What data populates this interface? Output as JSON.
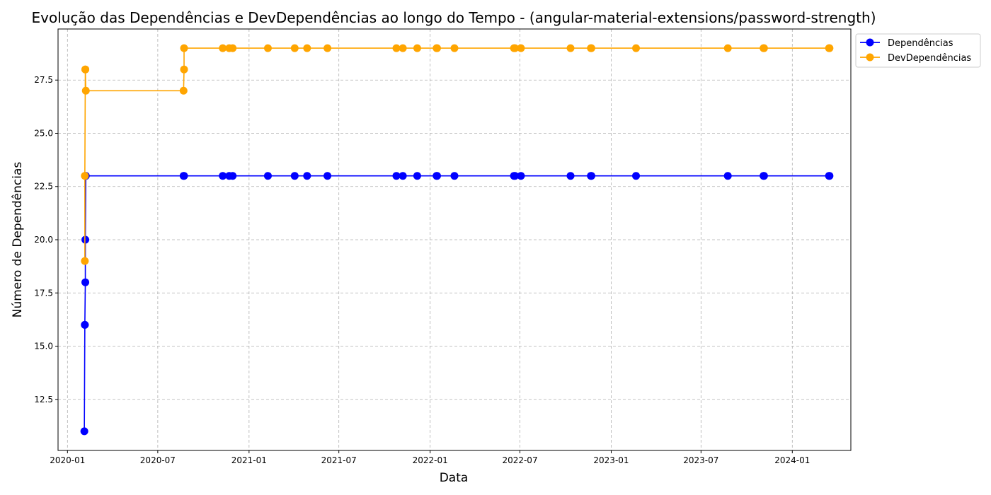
{
  "chart_data": {
    "type": "line",
    "title": "Evolução das Dependências e DevDependências ao longo do Tempo - (angular-material-extensions/password-strength)",
    "xlabel": "Data",
    "ylabel": "Número de Dependências",
    "x_ticks": [
      "2020-01",
      "2020-07",
      "2021-01",
      "2021-07",
      "2022-01",
      "2022-07",
      "2023-01",
      "2023-07",
      "2024-01"
    ],
    "y_ticks": [
      "12.5",
      "15.0",
      "17.5",
      "20.0",
      "22.5",
      "25.0",
      "27.5"
    ],
    "xlim": [
      "2019-12-13",
      "2024-04-28"
    ],
    "ylim": [
      10.1,
      29.9
    ],
    "grid": true,
    "legend_position": "upper-right-outside",
    "series": [
      {
        "name": "Dependências",
        "color": "#0000ff",
        "x": [
          "2020-02-04",
          "2020-02-05",
          "2020-02-05",
          "2020-02-06",
          "2020-02-06",
          "2020-02-07",
          "2020-08-22",
          "2020-08-23",
          "2020-11-09",
          "2020-11-22",
          "2020-11-29",
          "2021-02-08",
          "2021-04-03",
          "2021-04-28",
          "2021-06-08",
          "2021-10-25",
          "2021-11-07",
          "2021-12-06",
          "2022-01-14",
          "2022-01-15",
          "2022-02-19",
          "2022-06-19",
          "2022-06-21",
          "2022-07-03",
          "2022-10-11",
          "2022-11-21",
          "2022-11-22",
          "2023-02-20",
          "2023-08-24",
          "2023-11-04",
          "2023-11-05",
          "2024-03-15",
          "2024-03-16"
        ],
        "y": [
          11,
          16,
          16,
          18,
          20,
          23,
          23,
          23,
          23,
          23,
          23,
          23,
          23,
          23,
          23,
          23,
          23,
          23,
          23,
          23,
          23,
          23,
          23,
          23,
          23,
          23,
          23,
          23,
          23,
          23,
          23,
          23,
          23
        ]
      },
      {
        "name": "DevDependências",
        "color": "#ffa500",
        "x": [
          "2020-02-05",
          "2020-02-05",
          "2020-02-06",
          "2020-02-06",
          "2020-02-07",
          "2020-08-22",
          "2020-08-23",
          "2020-08-23",
          "2020-11-09",
          "2020-11-22",
          "2020-11-29",
          "2021-02-08",
          "2021-04-03",
          "2021-04-28",
          "2021-06-08",
          "2021-10-25",
          "2021-11-07",
          "2021-12-06",
          "2022-01-14",
          "2022-01-15",
          "2022-02-19",
          "2022-06-19",
          "2022-06-21",
          "2022-07-03",
          "2022-10-11",
          "2022-11-21",
          "2022-11-22",
          "2023-02-20",
          "2023-08-24",
          "2023-11-04",
          "2023-11-05",
          "2024-03-15",
          "2024-03-16"
        ],
        "y": [
          19,
          23,
          28,
          28,
          27,
          27,
          28,
          29,
          29,
          29,
          29,
          29,
          29,
          29,
          29,
          29,
          29,
          29,
          29,
          29,
          29,
          29,
          29,
          29,
          29,
          29,
          29,
          29,
          29,
          29,
          29,
          29,
          29
        ]
      }
    ]
  }
}
